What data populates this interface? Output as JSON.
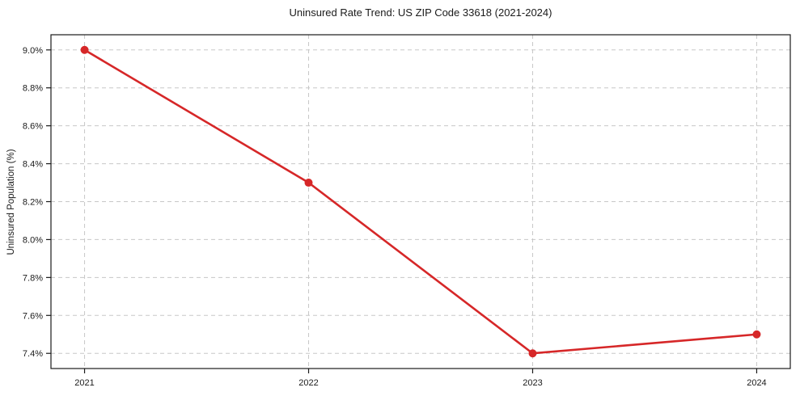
{
  "chart_data": {
    "type": "line",
    "title": "Uninsured Rate Trend: US ZIP Code 33618 (2021-2024)",
    "xlabel": "",
    "ylabel": "Uninsured Population (%)",
    "categories": [
      "2021",
      "2022",
      "2023",
      "2024"
    ],
    "series": [
      {
        "values": [
          9.0,
          8.3,
          7.4,
          7.5
        ]
      }
    ],
    "ylim": [
      7.32,
      9.08
    ],
    "y_tick_values": [
      9.0,
      8.8,
      8.6,
      8.4,
      8.2,
      8.0,
      7.8,
      7.6,
      7.4
    ],
    "y_tick_labels": [
      "9.0%",
      "8.8%",
      "8.6%",
      "8.4%",
      "8.2%",
      "8.0%",
      "7.8%",
      "7.6%",
      "7.4%"
    ],
    "grid": true,
    "grid_style": "dashed",
    "legend_position": "none",
    "marker": "circle",
    "colors": {
      "line": "#d62728",
      "grid": "#c8c8c8",
      "frame": "#1a1a1a",
      "text": "#1a1a1a",
      "background": "#ffffff"
    }
  }
}
